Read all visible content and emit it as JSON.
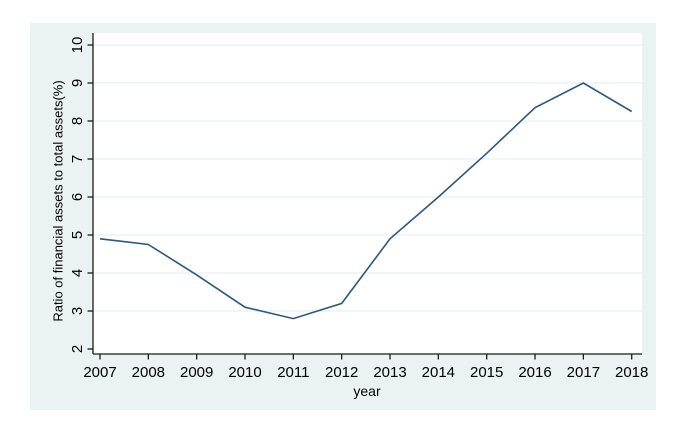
{
  "figure": {
    "outer_background": "#eaf2f3",
    "plot_background": "#ffffff",
    "gridline_color": "#e2ecf2",
    "axis_color": "#1a1a1a",
    "line_color": "#2a5783",
    "text_color": "#000000"
  },
  "chart_data": {
    "type": "line",
    "title": "",
    "xlabel": "year",
    "ylabel": "Ratio of financial assets to total assets(%)",
    "x": [
      2007,
      2008,
      2009,
      2010,
      2011,
      2012,
      2013,
      2014,
      2015,
      2016,
      2017,
      2018
    ],
    "values": [
      4.9,
      4.75,
      3.95,
      3.1,
      2.8,
      3.2,
      4.9,
      6.0,
      7.15,
      8.35,
      9.0,
      8.25
    ],
    "series_name": "Ratio of financial assets to total assets(%)",
    "ylim": [
      2,
      10
    ],
    "xlim": [
      2007,
      2018
    ],
    "y_ticks": [
      2,
      3,
      4,
      5,
      6,
      7,
      8,
      9,
      10
    ],
    "x_ticks": [
      2007,
      2008,
      2009,
      2010,
      2011,
      2012,
      2013,
      2014,
      2015,
      2016,
      2017,
      2018
    ],
    "grid": "horizontal-only",
    "gridline_at_ymin": false,
    "legend": "none",
    "y_tick_label_rotation_deg": 90,
    "marker": "none"
  }
}
